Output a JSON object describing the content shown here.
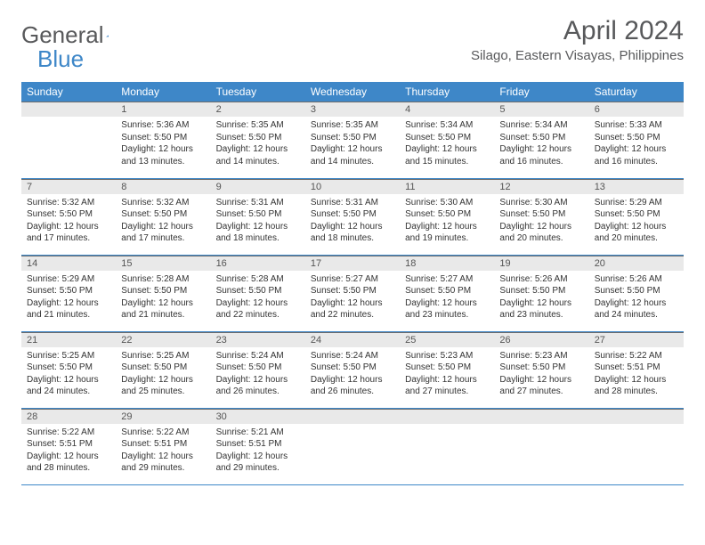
{
  "logo": {
    "text_general": "General",
    "text_blue": "Blue"
  },
  "header": {
    "month_title": "April 2024",
    "location": "Silago, Eastern Visayas, Philippines"
  },
  "colors": {
    "header_bg": "#3e87c8",
    "header_text": "#ffffff",
    "daynum_bg": "#e9e9e9",
    "daynum_border": "#6b6b6b",
    "week_divider": "#3e87c8",
    "body_text": "#333333",
    "title_text": "#58595b",
    "page_bg": "#ffffff"
  },
  "typography": {
    "month_title_fontsize": 30,
    "location_fontsize": 15,
    "dayheader_fontsize": 12,
    "daynum_fontsize": 11,
    "body_fontsize": 10
  },
  "day_headers": [
    "Sunday",
    "Monday",
    "Tuesday",
    "Wednesday",
    "Thursday",
    "Friday",
    "Saturday"
  ],
  "weeks": [
    [
      {
        "num": "",
        "sunrise": "",
        "sunset": "",
        "daylight": ""
      },
      {
        "num": "1",
        "sunrise": "Sunrise: 5:36 AM",
        "sunset": "Sunset: 5:50 PM",
        "daylight": "Daylight: 12 hours and 13 minutes."
      },
      {
        "num": "2",
        "sunrise": "Sunrise: 5:35 AM",
        "sunset": "Sunset: 5:50 PM",
        "daylight": "Daylight: 12 hours and 14 minutes."
      },
      {
        "num": "3",
        "sunrise": "Sunrise: 5:35 AM",
        "sunset": "Sunset: 5:50 PM",
        "daylight": "Daylight: 12 hours and 14 minutes."
      },
      {
        "num": "4",
        "sunrise": "Sunrise: 5:34 AM",
        "sunset": "Sunset: 5:50 PM",
        "daylight": "Daylight: 12 hours and 15 minutes."
      },
      {
        "num": "5",
        "sunrise": "Sunrise: 5:34 AM",
        "sunset": "Sunset: 5:50 PM",
        "daylight": "Daylight: 12 hours and 16 minutes."
      },
      {
        "num": "6",
        "sunrise": "Sunrise: 5:33 AM",
        "sunset": "Sunset: 5:50 PM",
        "daylight": "Daylight: 12 hours and 16 minutes."
      }
    ],
    [
      {
        "num": "7",
        "sunrise": "Sunrise: 5:32 AM",
        "sunset": "Sunset: 5:50 PM",
        "daylight": "Daylight: 12 hours and 17 minutes."
      },
      {
        "num": "8",
        "sunrise": "Sunrise: 5:32 AM",
        "sunset": "Sunset: 5:50 PM",
        "daylight": "Daylight: 12 hours and 17 minutes."
      },
      {
        "num": "9",
        "sunrise": "Sunrise: 5:31 AM",
        "sunset": "Sunset: 5:50 PM",
        "daylight": "Daylight: 12 hours and 18 minutes."
      },
      {
        "num": "10",
        "sunrise": "Sunrise: 5:31 AM",
        "sunset": "Sunset: 5:50 PM",
        "daylight": "Daylight: 12 hours and 18 minutes."
      },
      {
        "num": "11",
        "sunrise": "Sunrise: 5:30 AM",
        "sunset": "Sunset: 5:50 PM",
        "daylight": "Daylight: 12 hours and 19 minutes."
      },
      {
        "num": "12",
        "sunrise": "Sunrise: 5:30 AM",
        "sunset": "Sunset: 5:50 PM",
        "daylight": "Daylight: 12 hours and 20 minutes."
      },
      {
        "num": "13",
        "sunrise": "Sunrise: 5:29 AM",
        "sunset": "Sunset: 5:50 PM",
        "daylight": "Daylight: 12 hours and 20 minutes."
      }
    ],
    [
      {
        "num": "14",
        "sunrise": "Sunrise: 5:29 AM",
        "sunset": "Sunset: 5:50 PM",
        "daylight": "Daylight: 12 hours and 21 minutes."
      },
      {
        "num": "15",
        "sunrise": "Sunrise: 5:28 AM",
        "sunset": "Sunset: 5:50 PM",
        "daylight": "Daylight: 12 hours and 21 minutes."
      },
      {
        "num": "16",
        "sunrise": "Sunrise: 5:28 AM",
        "sunset": "Sunset: 5:50 PM",
        "daylight": "Daylight: 12 hours and 22 minutes."
      },
      {
        "num": "17",
        "sunrise": "Sunrise: 5:27 AM",
        "sunset": "Sunset: 5:50 PM",
        "daylight": "Daylight: 12 hours and 22 minutes."
      },
      {
        "num": "18",
        "sunrise": "Sunrise: 5:27 AM",
        "sunset": "Sunset: 5:50 PM",
        "daylight": "Daylight: 12 hours and 23 minutes."
      },
      {
        "num": "19",
        "sunrise": "Sunrise: 5:26 AM",
        "sunset": "Sunset: 5:50 PM",
        "daylight": "Daylight: 12 hours and 23 minutes."
      },
      {
        "num": "20",
        "sunrise": "Sunrise: 5:26 AM",
        "sunset": "Sunset: 5:50 PM",
        "daylight": "Daylight: 12 hours and 24 minutes."
      }
    ],
    [
      {
        "num": "21",
        "sunrise": "Sunrise: 5:25 AM",
        "sunset": "Sunset: 5:50 PM",
        "daylight": "Daylight: 12 hours and 24 minutes."
      },
      {
        "num": "22",
        "sunrise": "Sunrise: 5:25 AM",
        "sunset": "Sunset: 5:50 PM",
        "daylight": "Daylight: 12 hours and 25 minutes."
      },
      {
        "num": "23",
        "sunrise": "Sunrise: 5:24 AM",
        "sunset": "Sunset: 5:50 PM",
        "daylight": "Daylight: 12 hours and 26 minutes."
      },
      {
        "num": "24",
        "sunrise": "Sunrise: 5:24 AM",
        "sunset": "Sunset: 5:50 PM",
        "daylight": "Daylight: 12 hours and 26 minutes."
      },
      {
        "num": "25",
        "sunrise": "Sunrise: 5:23 AM",
        "sunset": "Sunset: 5:50 PM",
        "daylight": "Daylight: 12 hours and 27 minutes."
      },
      {
        "num": "26",
        "sunrise": "Sunrise: 5:23 AM",
        "sunset": "Sunset: 5:50 PM",
        "daylight": "Daylight: 12 hours and 27 minutes."
      },
      {
        "num": "27",
        "sunrise": "Sunrise: 5:22 AM",
        "sunset": "Sunset: 5:51 PM",
        "daylight": "Daylight: 12 hours and 28 minutes."
      }
    ],
    [
      {
        "num": "28",
        "sunrise": "Sunrise: 5:22 AM",
        "sunset": "Sunset: 5:51 PM",
        "daylight": "Daylight: 12 hours and 28 minutes."
      },
      {
        "num": "29",
        "sunrise": "Sunrise: 5:22 AM",
        "sunset": "Sunset: 5:51 PM",
        "daylight": "Daylight: 12 hours and 29 minutes."
      },
      {
        "num": "30",
        "sunrise": "Sunrise: 5:21 AM",
        "sunset": "Sunset: 5:51 PM",
        "daylight": "Daylight: 12 hours and 29 minutes."
      },
      {
        "num": "",
        "sunrise": "",
        "sunset": "",
        "daylight": ""
      },
      {
        "num": "",
        "sunrise": "",
        "sunset": "",
        "daylight": ""
      },
      {
        "num": "",
        "sunrise": "",
        "sunset": "",
        "daylight": ""
      },
      {
        "num": "",
        "sunrise": "",
        "sunset": "",
        "daylight": ""
      }
    ]
  ]
}
